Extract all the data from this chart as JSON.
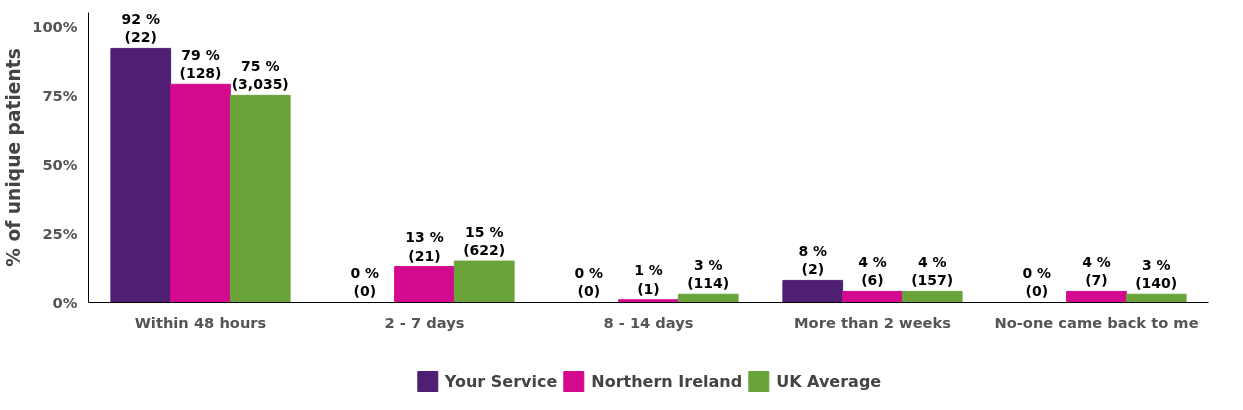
{
  "chart_data": {
    "type": "bar",
    "ylabel": "% of unique patients",
    "categories": [
      "Within 48 hours",
      "2 - 7 days",
      "8 - 14 days",
      "More than 2 weeks",
      "No-one came back to me"
    ],
    "series": [
      {
        "name": "Your Service",
        "color": "#4f1f74",
        "values": [
          92,
          0,
          0,
          8,
          0
        ],
        "value_labels": [
          "92 %\n(22)",
          "0 %\n(0)",
          "0 %\n(0)",
          "8 %\n(2)",
          "0 %\n(0)"
        ]
      },
      {
        "name": "Northern Ireland",
        "color": "#d40a8e",
        "values": [
          79,
          13,
          1,
          4,
          4
        ],
        "value_labels": [
          "79 %\n(128)",
          "13 %\n(21)",
          "1 %\n(1)",
          "4 %\n(6)",
          "4 %\n(7)"
        ]
      },
      {
        "name": "UK Average",
        "color": "#6aa33a",
        "values": [
          75,
          15,
          3,
          4,
          3
        ],
        "value_labels": [
          "75 %\n(3,035)",
          "15 %\n(622)",
          "3 %\n(114)",
          "4 %\n(157)",
          "3 %\n(140)"
        ]
      }
    ],
    "ylim": [
      0,
      105
    ],
    "yticks": [
      {
        "value": 0,
        "label": "0%"
      },
      {
        "value": 25,
        "label": "25%"
      },
      {
        "value": 50,
        "label": "50%"
      },
      {
        "value": 75,
        "label": "75%"
      },
      {
        "value": 100,
        "label": "100%"
      }
    ],
    "grid": false,
    "legend": "bottom"
  }
}
